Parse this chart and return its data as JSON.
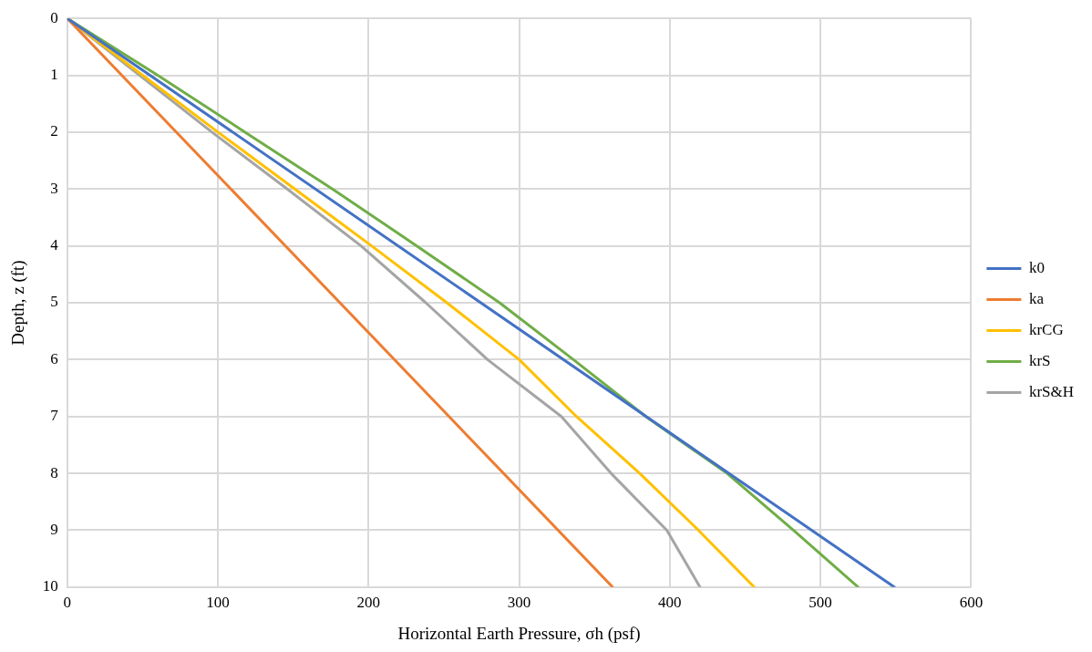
{
  "chart_data": {
    "type": "line",
    "xlabel": "Horizontal Earth Pressure, σh (psf)",
    "ylabel": "Depth, z (ft)",
    "xlim": [
      0,
      600
    ],
    "xticks": [
      0,
      100,
      200,
      300,
      400,
      500,
      600
    ],
    "ylim": [
      10,
      0
    ],
    "yticks": [
      0,
      1,
      2,
      3,
      4,
      5,
      6,
      7,
      8,
      9,
      10
    ],
    "grid": true,
    "legend": "right",
    "marker": "none",
    "line_style": "solid",
    "series": [
      {
        "name": "k0",
        "color": "#4472c4",
        "x": [
          0,
          549
        ],
        "values": [
          0,
          10
        ]
      },
      {
        "name": "ka",
        "color": "#ed7d31",
        "x": [
          0,
          362
        ],
        "values": [
          0,
          10
        ]
      },
      {
        "name": "krCG",
        "color": "#ffc000",
        "x": [
          0,
          50,
          100,
          151,
          202,
          252,
          300,
          338,
          380,
          419,
          456
        ],
        "values": [
          0,
          1,
          2,
          3,
          4,
          5,
          6,
          7,
          8,
          9,
          10
        ]
      },
      {
        "name": "krS",
        "color": "#70ad47",
        "x": [
          0,
          60,
          118,
          176,
          232,
          287,
          336,
          384,
          438,
          482,
          525
        ],
        "values": [
          0,
          1,
          2,
          3,
          4,
          5,
          6,
          7,
          8,
          9,
          10
        ]
      },
      {
        "name": "krS&H",
        "color": "#a5a5a5",
        "x": [
          0,
          48,
          96,
          146,
          195,
          238,
          279,
          328,
          361,
          398,
          420
        ],
        "values": [
          0,
          1,
          2,
          3,
          4,
          5,
          6,
          7,
          8,
          9,
          10
        ]
      }
    ]
  }
}
